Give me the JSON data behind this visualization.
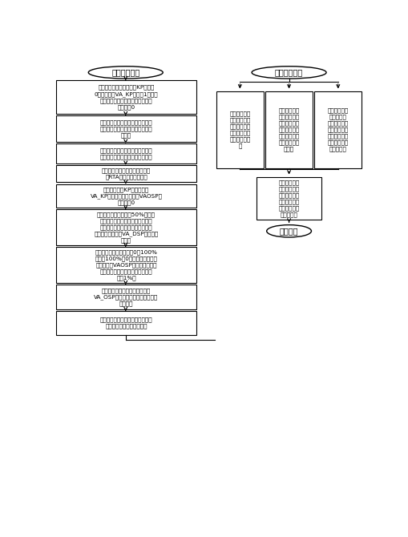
{
  "bg_color": "#ffffff",
  "left_title": "补偿参数设定",
  "right_title": "控制参数整定",
  "left_boxes": [
    "将导叶控制回路主环增益KP设置为\n0，副环增益VA_KP设置为1，电液\n转换器电气零位及主配中位补偿参\n数均设为0",
    "开启录波模式，观察反馈及内部参\n数变化。使能输出后，导叶将开至\n最大。",
    "待导叶稳定后，此时观察到的最终\n输出值即是电液转换器的电气零点",
    "将该值作为电液转换器补偿参数\n（RTA）写入卡件程序中",
    "恢复主环增益KP和副环增益\nVA_KP，主配中位补偿参数VAOSP继\n续保持为0",
    "手动设定导叶开度值为50%，待导\n叶打开稳定后，读取主配反馈值，\n该值即为主配中位理想值，将该值\n作为主配中位补偿VA_DSP写入卡件\n程序中",
    "改变导叶开度设定值（从0到100%\n，再从100%到0），在此过程中根\n据需要微调VAOSP的值，使导叶开\n度设定值与反馈值相等（偏差至少\n小于1%）",
    "将最终得到的主配中位补偿参数\nVA_OSP和电液转换器电气零点补偿\n参数保存",
    "将备用通道切为主用，用同样的方\n法进行此通道补偿参数设定"
  ],
  "left_box_heights": [
    54,
    42,
    32,
    28,
    38,
    58,
    58,
    40,
    38
  ],
  "right_sub_boxes": [
    "若已经液压控\n制回路传递函\n数则可使用参\n数稳定软件求\n取理论控制参\n数",
    "若传递函数未\n知，但大概了\n解其特性，可\n采用工程整定\n法，如临界比\n例带法、衰减\n曲线法",
    "若已知相似机\n组的控制参\n数，可凭经验\n设置近似值，\n然后加入阶跃\n扰动，根据特\n件逐步求取"
  ],
  "right_bottom_box": "请有资质的试\n验院所进行调\n速器动静态试\n验，精确校验\n参数，使其满\n足规范要求",
  "end_label": "调试结束"
}
